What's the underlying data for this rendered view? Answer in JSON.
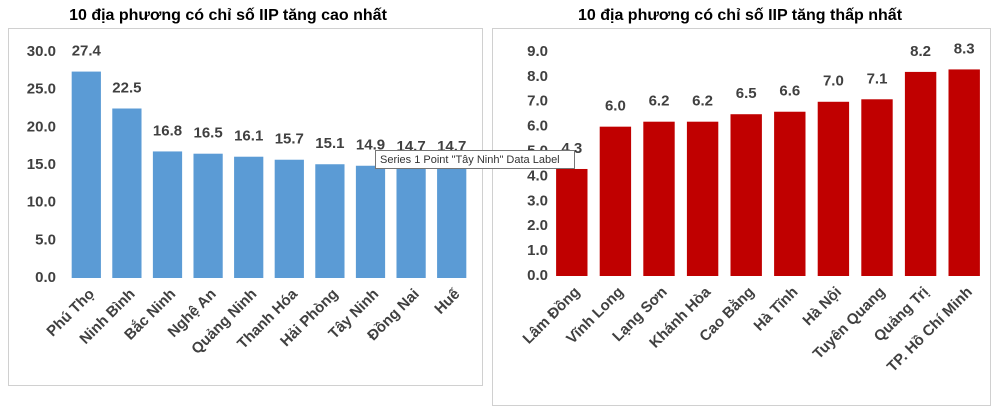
{
  "chart_data": [
    {
      "type": "bar",
      "title": "10 địa phương có chỉ số IIP tăng cao nhất",
      "categories": [
        "Phú Thọ",
        "Ninh Bình",
        "Bắc Ninh",
        "Nghệ An",
        "Quảng Ninh",
        "Thanh Hóa",
        "Hải Phòng",
        "Tây Ninh",
        "Đồng Nai",
        "Huế"
      ],
      "values": [
        27.4,
        22.5,
        16.8,
        16.5,
        16.1,
        15.7,
        15.1,
        14.9,
        14.7,
        14.7
      ],
      "color": "#5b9bd5",
      "ylim": [
        0,
        30
      ],
      "yticks": [
        {
          "value": 0,
          "label": "0.0"
        },
        {
          "value": 5,
          "label": "5.0"
        },
        {
          "value": 10,
          "label": "10.0"
        },
        {
          "value": 15,
          "label": "15.0"
        },
        {
          "value": 20,
          "label": "20.0"
        },
        {
          "value": 25,
          "label": "25.0"
        },
        {
          "value": 30,
          "label": "30.0"
        }
      ]
    },
    {
      "type": "bar",
      "title": "10 địa phương có chỉ số IIP tăng thấp nhất",
      "categories": [
        "Lâm Đồng",
        "Vĩnh Long",
        "Lạng Sơn",
        "Khánh Hòa",
        "Cao Bằng",
        "Hà Tĩnh",
        "Hà Nội",
        "Tuyên Quang",
        "Quảng Trị",
        "TP. Hồ Chí Minh"
      ],
      "values": [
        4.3,
        6.0,
        6.2,
        6.2,
        6.5,
        6.6,
        7.0,
        7.1,
        8.2,
        8.3
      ],
      "value_labels": [
        "4.3",
        "6.0",
        "6.2",
        "6.2",
        "6.5",
        "6.6",
        "7.0",
        "7.1",
        "8.2",
        "8.3"
      ],
      "color": "#c00000",
      "ylim": [
        0,
        9
      ],
      "yticks": [
        {
          "value": 0,
          "label": "0.0"
        },
        {
          "value": 1,
          "label": "1.0"
        },
        {
          "value": 2,
          "label": "2.0"
        },
        {
          "value": 3,
          "label": "3.0"
        },
        {
          "value": 4,
          "label": "4.0"
        },
        {
          "value": 5,
          "label": "5.0"
        },
        {
          "value": 6,
          "label": "6.0"
        },
        {
          "value": 7,
          "label": "7.0"
        },
        {
          "value": 8,
          "label": "8.0"
        },
        {
          "value": 9,
          "label": "9.0"
        }
      ]
    }
  ],
  "tooltip": "Series 1 Point \"Tây Ninh\" Data Label"
}
